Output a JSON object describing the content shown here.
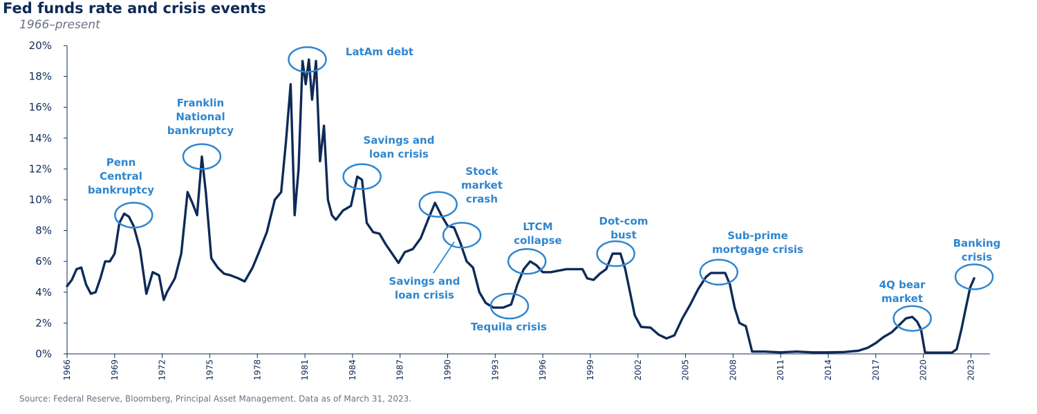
{
  "header": {
    "title": "Fed funds rate and crisis events",
    "subtitle": "1966–present"
  },
  "footer": {
    "source": "Source: Federal Reserve, Bloomberg, Principal Asset Management. Data as of March 31, 2023."
  },
  "colors": {
    "line": "#0e2a57",
    "annotation": "#2f86cf",
    "axis": "#0e2a57"
  },
  "chart_data": {
    "type": "line",
    "title": "Fed funds rate and crisis events",
    "subtitle": "1966–present",
    "xlabel": "",
    "ylabel": "",
    "xlim": [
      1966,
      2024.2
    ],
    "ylim": [
      0,
      20
    ],
    "yticks": [
      0,
      2,
      4,
      6,
      8,
      10,
      12,
      14,
      16,
      18,
      20
    ],
    "ytick_labels": [
      "0%",
      "2%",
      "4%",
      "6%",
      "8%",
      "10%",
      "12%",
      "14%",
      "16%",
      "18%",
      "20%"
    ],
    "xticks": [
      1966,
      1969,
      1972,
      1975,
      1978,
      1981,
      1984,
      1987,
      1990,
      1993,
      1996,
      1999,
      2002,
      2005,
      2008,
      2011,
      2014,
      2017,
      2020,
      2023
    ],
    "grid": false,
    "series": [
      {
        "x": [
          1966.0,
          1966.3,
          1966.6,
          1966.9,
          1967.2,
          1967.5,
          1967.8,
          1968.1,
          1968.4,
          1968.7,
          1969.0,
          1969.3,
          1969.6,
          1969.9,
          1970.2,
          1970.6,
          1971.0,
          1971.4,
          1971.8,
          1972.1,
          1972.3,
          1972.8,
          1973.2,
          1973.6,
          1973.9,
          1974.2,
          1974.5,
          1974.75,
          1975.1,
          1975.5,
          1975.9,
          1976.3,
          1976.8,
          1977.2,
          1977.7,
          1978.1,
          1978.6,
          1979.1,
          1979.5,
          1979.8,
          1980.1,
          1980.35,
          1980.6,
          1980.85,
          1981.05,
          1981.25,
          1981.45,
          1981.7,
          1981.95,
          1982.2,
          1982.45,
          1982.7,
          1982.95,
          1983.4,
          1983.9,
          1984.3,
          1984.6,
          1984.9,
          1985.3,
          1985.7,
          1986.1,
          1986.5,
          1986.9,
          1987.3,
          1987.8,
          1988.3,
          1988.8,
          1989.2,
          1989.6,
          1990.0,
          1990.4,
          1990.8,
          1991.2,
          1991.6,
          1992.0,
          1992.4,
          1992.9,
          1993.5,
          1994.0,
          1994.4,
          1994.8,
          1995.2,
          1995.6,
          1996.0,
          1996.5,
          1997.0,
          1997.5,
          1998.0,
          1998.5,
          1998.8,
          1999.2,
          1999.6,
          2000.0,
          2000.4,
          2000.9,
          2001.2,
          2001.5,
          2001.8,
          2002.2,
          2002.8,
          2003.3,
          2003.8,
          2004.3,
          2004.8,
          2005.3,
          2005.8,
          2006.3,
          2006.6,
          2007.0,
          2007.5,
          2007.8,
          2008.1,
          2008.4,
          2008.8,
          2009.2,
          2010.0,
          2011.0,
          2012.0,
          2013.0,
          2014.0,
          2015.0,
          2015.9,
          2016.5,
          2017.0,
          2017.5,
          2018.0,
          2018.5,
          2018.9,
          2019.3,
          2019.6,
          2019.85,
          2020.1,
          2020.3,
          2021.0,
          2021.8,
          2022.1,
          2022.4,
          2022.7,
          2022.95,
          2023.2
        ],
        "values": [
          4.4,
          4.8,
          5.5,
          5.6,
          4.5,
          3.9,
          4.0,
          4.9,
          6.0,
          6.0,
          6.5,
          8.5,
          9.1,
          8.9,
          8.3,
          6.8,
          3.9,
          5.3,
          5.1,
          3.5,
          4.0,
          4.9,
          6.5,
          10.5,
          9.8,
          9.0,
          12.8,
          10.5,
          6.2,
          5.6,
          5.2,
          5.1,
          4.9,
          4.7,
          5.6,
          6.6,
          7.9,
          10.0,
          10.5,
          13.7,
          17.5,
          9.0,
          12.0,
          19.0,
          17.5,
          19.1,
          16.5,
          19.0,
          12.5,
          14.8,
          10.0,
          9.0,
          8.7,
          9.3,
          9.6,
          11.5,
          11.3,
          8.5,
          7.9,
          7.8,
          7.1,
          6.5,
          5.9,
          6.6,
          6.8,
          7.5,
          8.8,
          9.8,
          9.0,
          8.3,
          8.2,
          7.2,
          6.0,
          5.6,
          4.0,
          3.3,
          3.0,
          3.0,
          3.2,
          4.5,
          5.5,
          6.0,
          5.75,
          5.3,
          5.3,
          5.4,
          5.5,
          5.5,
          5.5,
          4.9,
          4.8,
          5.2,
          5.5,
          6.5,
          6.5,
          5.5,
          4.0,
          2.5,
          1.75,
          1.7,
          1.25,
          1.0,
          1.2,
          2.3,
          3.2,
          4.2,
          5.0,
          5.25,
          5.25,
          5.25,
          4.5,
          3.0,
          2.0,
          1.8,
          0.15,
          0.15,
          0.1,
          0.15,
          0.1,
          0.1,
          0.12,
          0.2,
          0.4,
          0.7,
          1.1,
          1.4,
          1.9,
          2.3,
          2.4,
          2.1,
          1.6,
          0.1,
          0.08,
          0.08,
          0.08,
          0.3,
          1.6,
          3.1,
          4.3,
          4.9
        ]
      }
    ],
    "annotations": [
      {
        "label": [
          "Penn",
          "Central",
          "bankruptcy"
        ],
        "x": 1970.2,
        "y": 9.0
      },
      {
        "label": [
          "Franklin",
          "National",
          "bankruptcy"
        ],
        "x": 1974.5,
        "y": 12.8
      },
      {
        "label": [
          "LatAm debt"
        ],
        "x": 1981.15,
        "y": 19.1
      },
      {
        "label": [
          "Savings and",
          "loan crisis"
        ],
        "x": 1984.6,
        "y": 11.5
      },
      {
        "label": [
          "Stock",
          "market",
          "crash"
        ],
        "x": 1989.4,
        "y": 9.7
      },
      {
        "label": [
          "Savings and",
          "loan crisis"
        ],
        "x": 1990.9,
        "y": 7.7
      },
      {
        "label": [
          "Tequila crisis"
        ],
        "x": 1993.9,
        "y": 3.1
      },
      {
        "label": [
          "LTCM",
          "collapse"
        ],
        "x": 1995.0,
        "y": 6.0
      },
      {
        "label": [
          "Dot-com",
          "bust"
        ],
        "x": 2000.6,
        "y": 6.5
      },
      {
        "label": [
          "Sub-prime",
          "mortgage crisis"
        ],
        "x": 2007.1,
        "y": 5.3
      },
      {
        "label": [
          "4Q bear",
          "market"
        ],
        "x": 2019.3,
        "y": 2.3
      },
      {
        "label": [
          "Banking",
          "crisis"
        ],
        "x": 2023.2,
        "y": 5.0
      }
    ]
  }
}
